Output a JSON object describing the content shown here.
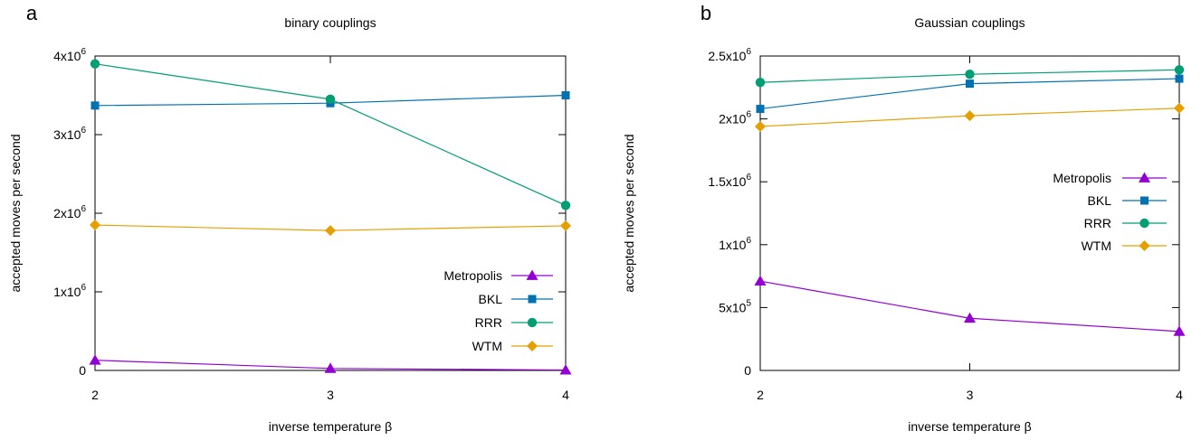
{
  "chart_data": [
    {
      "panel_label": "a",
      "type": "line",
      "title": "binary couplings",
      "xlabel": "inverse temperature β",
      "ylabel": "accepted moves per second",
      "x": [
        2,
        3,
        4
      ],
      "xlim": [
        2,
        4
      ],
      "ylim": [
        0,
        4000000
      ],
      "yticks": [
        {
          "value": 0,
          "base": "0",
          "sup": ""
        },
        {
          "value": 1000000,
          "base": "1x10",
          "sup": "6"
        },
        {
          "value": 2000000,
          "base": "2x10",
          "sup": "6"
        },
        {
          "value": 3000000,
          "base": "3x10",
          "sup": "6"
        },
        {
          "value": 4000000,
          "base": "4x10",
          "sup": "6"
        }
      ],
      "legend_position": "bottom-right",
      "series": [
        {
          "name": "Metropolis",
          "color": "#9400d3",
          "marker": "triangle",
          "values": [
            130000,
            25000,
            5000
          ]
        },
        {
          "name": "BKL",
          "color": "#0072b2",
          "marker": "square",
          "values": [
            3370000,
            3400000,
            3500000
          ]
        },
        {
          "name": "RRR",
          "color": "#009e73",
          "marker": "circle",
          "values": [
            3900000,
            3450000,
            2100000
          ]
        },
        {
          "name": "WTM",
          "color": "#e69f00",
          "marker": "diamond",
          "values": [
            1850000,
            1780000,
            1840000
          ]
        }
      ]
    },
    {
      "panel_label": "b",
      "type": "line",
      "title": "Gaussian couplings",
      "xlabel": "inverse temperature β",
      "ylabel": "accepted moves per second",
      "x": [
        2,
        3,
        4
      ],
      "xlim": [
        2,
        4
      ],
      "ylim": [
        0,
        2500000
      ],
      "yticks": [
        {
          "value": 0,
          "base": "0",
          "sup": ""
        },
        {
          "value": 500000,
          "base": "5x10",
          "sup": "5"
        },
        {
          "value": 1000000,
          "base": "1x10",
          "sup": "6"
        },
        {
          "value": 1500000,
          "base": "1.5x10",
          "sup": "6"
        },
        {
          "value": 2000000,
          "base": "2x10",
          "sup": "6"
        },
        {
          "value": 2500000,
          "base": "2.5x10",
          "sup": "6"
        }
      ],
      "legend_position": "middle-right",
      "series": [
        {
          "name": "Metropolis",
          "color": "#9400d3",
          "marker": "triangle",
          "values": [
            710000,
            415000,
            310000
          ]
        },
        {
          "name": "BKL",
          "color": "#0072b2",
          "marker": "square",
          "values": [
            2080000,
            2280000,
            2320000
          ]
        },
        {
          "name": "RRR",
          "color": "#009e73",
          "marker": "circle",
          "values": [
            2290000,
            2355000,
            2390000
          ]
        },
        {
          "name": "WTM",
          "color": "#e69f00",
          "marker": "diamond",
          "values": [
            1940000,
            2025000,
            2085000
          ]
        }
      ]
    }
  ]
}
